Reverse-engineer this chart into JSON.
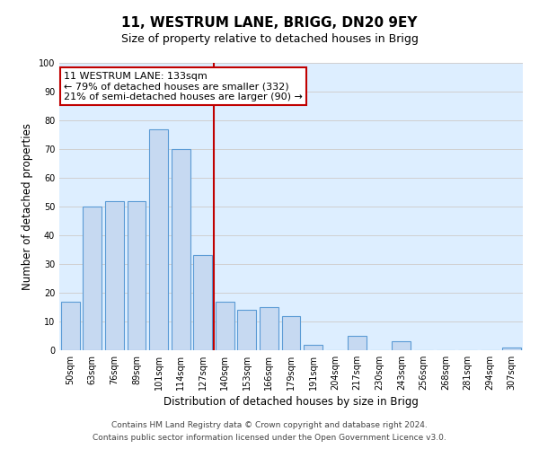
{
  "title": "11, WESTRUM LANE, BRIGG, DN20 9EY",
  "subtitle": "Size of property relative to detached houses in Brigg",
  "xlabel": "Distribution of detached houses by size in Brigg",
  "ylabel": "Number of detached properties",
  "bar_labels": [
    "50sqm",
    "63sqm",
    "76sqm",
    "89sqm",
    "101sqm",
    "114sqm",
    "127sqm",
    "140sqm",
    "153sqm",
    "166sqm",
    "179sqm",
    "191sqm",
    "204sqm",
    "217sqm",
    "230sqm",
    "243sqm",
    "256sqm",
    "268sqm",
    "281sqm",
    "294sqm",
    "307sqm"
  ],
  "bar_values": [
    17,
    50,
    52,
    52,
    77,
    70,
    33,
    17,
    14,
    15,
    12,
    2,
    0,
    5,
    0,
    3,
    0,
    0,
    0,
    0,
    1
  ],
  "bar_color": "#c6d9f1",
  "bar_edge_color": "#5b9bd5",
  "vline_x": 6.5,
  "vline_color": "#c00000",
  "annotation_box_text": "11 WESTRUM LANE: 133sqm\n← 79% of detached houses are smaller (332)\n21% of semi-detached houses are larger (90) →",
  "annotation_box_color": "#c00000",
  "annotation_box_bg": "#ffffff",
  "ylim": [
    0,
    100
  ],
  "yticks": [
    0,
    10,
    20,
    30,
    40,
    50,
    60,
    70,
    80,
    90,
    100
  ],
  "grid_color": "#d0d0d0",
  "bg_color": "#ddeeff",
  "footer_line1": "Contains HM Land Registry data © Crown copyright and database right 2024.",
  "footer_line2": "Contains public sector information licensed under the Open Government Licence v3.0.",
  "title_fontsize": 11,
  "subtitle_fontsize": 9,
  "axis_label_fontsize": 8.5,
  "tick_fontsize": 7,
  "annotation_fontsize": 8,
  "footer_fontsize": 6.5
}
